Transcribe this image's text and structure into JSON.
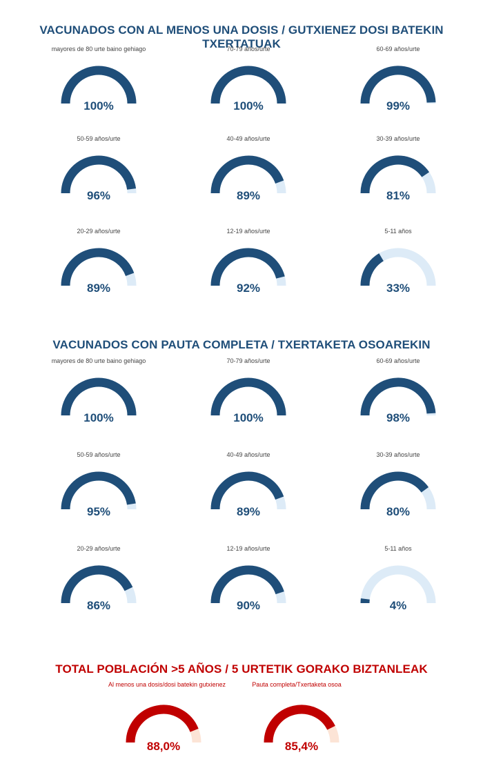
{
  "sections": [
    {
      "title": "VACUNADOS CON AL MENOS UNA DOSIS  / GUTXIENEZ DOSI BATEKIN TXERTATUAK",
      "title_color": "#1F4E79"
    },
    {
      "title": "VACUNADOS CON PAUTA COMPLETA  / TXERTAKETA OSOAREKIN",
      "title_color": "#1F4E79"
    },
    {
      "title": "TOTAL POBLACIÓN >5 AÑOS / 5 URTETIK GORAKO BIZTANLEAK",
      "title_color": "#C00000"
    }
  ],
  "colors": {
    "blue_fill": "#1F4E79",
    "blue_track": "#DDEBF7",
    "red_fill": "#C00000",
    "red_track": "#FCE4D6"
  },
  "chart_data": [
    {
      "type": "gauge",
      "title": "VACUNADOS CON AL MENOS UNA DOSIS  / GUTXIENEZ DOSI BATEKIN TXERTATUAK",
      "categories": [
        "mayores de 80 urte baino gehiago",
        "70-79 años/urte",
        "60-69 años/urte",
        "50-59 años/urte",
        "40-49 años/urte",
        "30-39 años/urte",
        "20-29 años/urte",
        "12-19 años/urte",
        "5-11 años"
      ],
      "values": [
        100,
        100,
        99,
        96,
        89,
        81,
        89,
        92,
        33
      ],
      "value_labels": [
        "100%",
        "100%",
        "99%",
        "96%",
        "89%",
        "81%",
        "89%",
        "92%",
        "33%"
      ],
      "ylim": [
        0,
        100
      ]
    },
    {
      "type": "gauge",
      "title": "VACUNADOS CON PAUTA COMPLETA  / TXERTAKETA OSOAREKIN",
      "categories": [
        "mayores de 80 urte baino gehiago",
        "70-79 años/urte",
        "60-69 años/urte",
        "50-59 años/urte",
        "40-49 años/urte",
        "30-39 años/urte",
        "20-29 años/urte",
        "12-19 años/urte",
        "5-11 años"
      ],
      "values": [
        100,
        100,
        98,
        95,
        89,
        80,
        86,
        90,
        4
      ],
      "value_labels": [
        "100%",
        "100%",
        "98%",
        "95%",
        "89%",
        "80%",
        "86%",
        "90%",
        "4%"
      ],
      "ylim": [
        0,
        100
      ]
    },
    {
      "type": "gauge",
      "title": "TOTAL POBLACIÓN >5 AÑOS / 5 URTETIK GORAKO BIZTANLEAK",
      "categories": [
        "Al menos una dosis/dosi batekin gutxienez",
        "Pauta completa/Txertaketa osoa"
      ],
      "values": [
        88.0,
        85.4
      ],
      "value_labels": [
        "88,0%",
        "85,4%"
      ],
      "ylim": [
        0,
        100
      ]
    }
  ]
}
